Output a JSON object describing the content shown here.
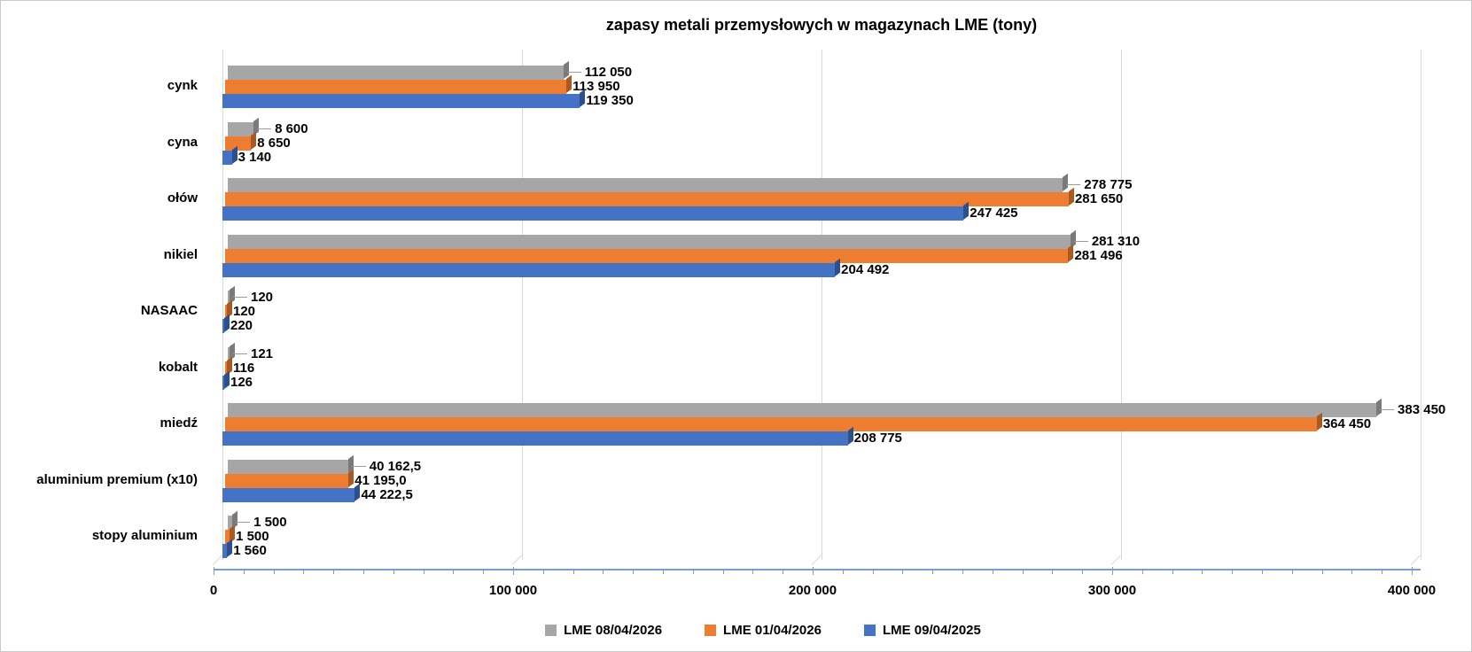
{
  "title": "zapasy metali przemysłowych w magazynach LME (tony)",
  "chart_data": {
    "type": "bar",
    "orientation": "horizontal",
    "style": "3d",
    "title": "zapasy metali przemysłowych w magazynach LME (tony)",
    "categories": [
      "cynk",
      "cyna",
      "ołów",
      "nikiel",
      "NASAAC",
      "kobalt",
      "miedź",
      "aluminium premium (x10)",
      "stopy aluminium"
    ],
    "category_order": "top-to-bottom",
    "series": [
      {
        "name": "LME 08/04/2026",
        "color": "#a6a6a6",
        "cap_color": "#7a7a7a",
        "values": [
          112050,
          8600,
          278775,
          281310,
          120,
          121,
          383450,
          40162.5,
          1500
        ],
        "labels": [
          "112 050",
          "8 600",
          "278 775",
          "281 310",
          "120",
          "121",
          "383 450",
          "40 162,5",
          "1 500"
        ]
      },
      {
        "name": "LME 01/04/2026",
        "color": "#ed7d31",
        "cap_color": "#aa5a1f",
        "values": [
          113950,
          8650,
          281650,
          281496,
          120,
          116,
          364450,
          41195.0,
          1500
        ],
        "labels": [
          "113 950",
          "8 650",
          "281 650",
          "281 496",
          "120",
          "116",
          "364 450",
          "41 195,0",
          "1 500"
        ]
      },
      {
        "name": "LME 09/04/2025",
        "color": "#4472c4",
        "cap_color": "#2e4f8e",
        "values": [
          119350,
          3140,
          247425,
          204492,
          220,
          126,
          208775,
          44222.5,
          1560
        ],
        "labels": [
          "119 350",
          "3 140",
          "247 425",
          "204 492",
          "220",
          "126",
          "208 775",
          "44 222,5",
          "1 560"
        ]
      }
    ],
    "x_axis": {
      "ticks": [
        "0",
        "100 000",
        "200 000",
        "300 000",
        "400 000"
      ],
      "min": 0,
      "max": 400000,
      "minor_tick_interval": 10000
    },
    "legend": {
      "position": "bottom",
      "entries": [
        "LME 08/04/2026",
        "LME 01/04/2026",
        "LME 09/04/2025"
      ]
    },
    "gridlines": true,
    "colors": {
      "gridline": "#d9d9d9",
      "axis_line": "#7c9bd6",
      "leader_line": "#9a9a9a",
      "text": "#000000",
      "background": "#ffffff",
      "border": "#c9c9c9"
    }
  }
}
